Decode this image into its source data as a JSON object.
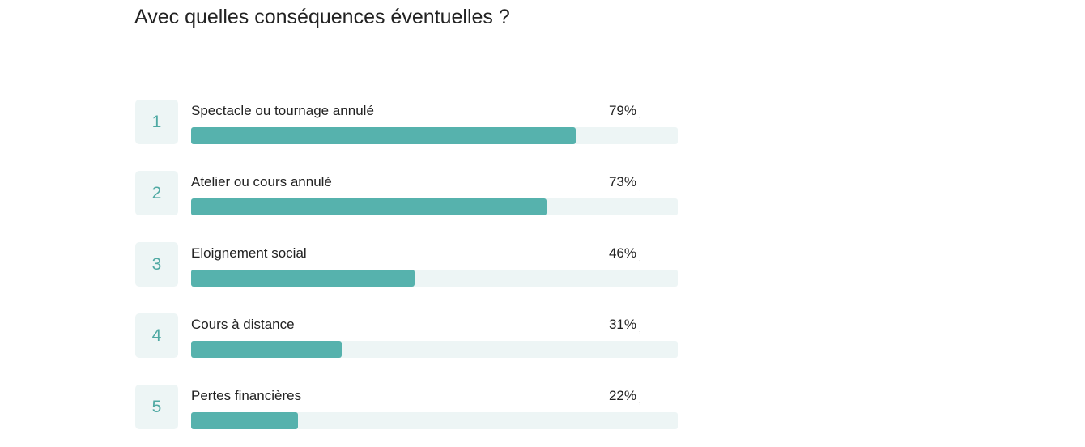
{
  "title": "Avec quelles conséquences éventuelles ?",
  "colors": {
    "bar_fill": "#56b2ad",
    "bar_track": "#edf5f5",
    "rank_box_bg": "#edf5f5",
    "rank_text": "#4fa9a3",
    "text": "#222222"
  },
  "chart_data": {
    "type": "bar",
    "orientation": "horizontal",
    "title": "Avec quelles conséquences éventuelles ?",
    "xlim": [
      0,
      100
    ],
    "categories": [
      "Spectacle ou tournage annulé",
      "Atelier ou cours annulé",
      "Eloignement social",
      "Cours à distance",
      "Pertes financières"
    ],
    "values": [
      79,
      73,
      46,
      31,
      22
    ],
    "ranks": [
      "1",
      "2",
      "3",
      "4",
      "5"
    ],
    "value_labels": [
      "79%",
      "73%",
      "46%",
      "31%",
      "22%"
    ],
    "value_suffix": ","
  }
}
